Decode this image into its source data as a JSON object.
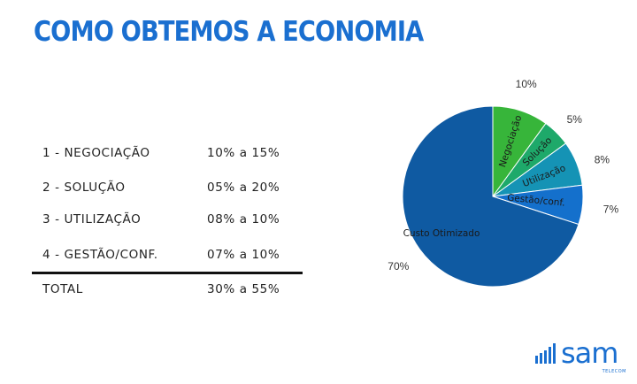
{
  "title": "COMO OBTEMOS A ECONOMIA",
  "table": {
    "rows": [
      {
        "label": "1 -  NEGOCIAÇÃO",
        "value": "10% a 15%"
      },
      {
        "label": "2 -  SOLUÇÃO",
        "value": "05% a 20%"
      },
      {
        "label": "3 - UTILIZAÇÃO",
        "value": "08% a 10%"
      },
      {
        "label": "4 - GESTÃO/CONF.",
        "value": "07% a 10%"
      }
    ],
    "total": {
      "label": "TOTAL",
      "value": "30% a 55%"
    }
  },
  "chart_data": {
    "type": "pie",
    "slices": [
      {
        "label": "Negociação",
        "value": 10,
        "percent_label": "10%",
        "color": "#37b53a"
      },
      {
        "label": "Solução",
        "value": 5,
        "percent_label": "5%",
        "color": "#1ea96a"
      },
      {
        "label": "Utilização",
        "value": 8,
        "percent_label": "8%",
        "color": "#1593b5"
      },
      {
        "label": "Gestão/conf.",
        "value": 7,
        "percent_label": "7%",
        "color": "#1470cc"
      },
      {
        "label": "Custo Otimizado",
        "value": 70,
        "percent_label": "70%",
        "color": "#0f5aa2"
      }
    ]
  },
  "logo": {
    "name": "sam",
    "sub": "TELECOM",
    "color": "#1a6fd0"
  }
}
